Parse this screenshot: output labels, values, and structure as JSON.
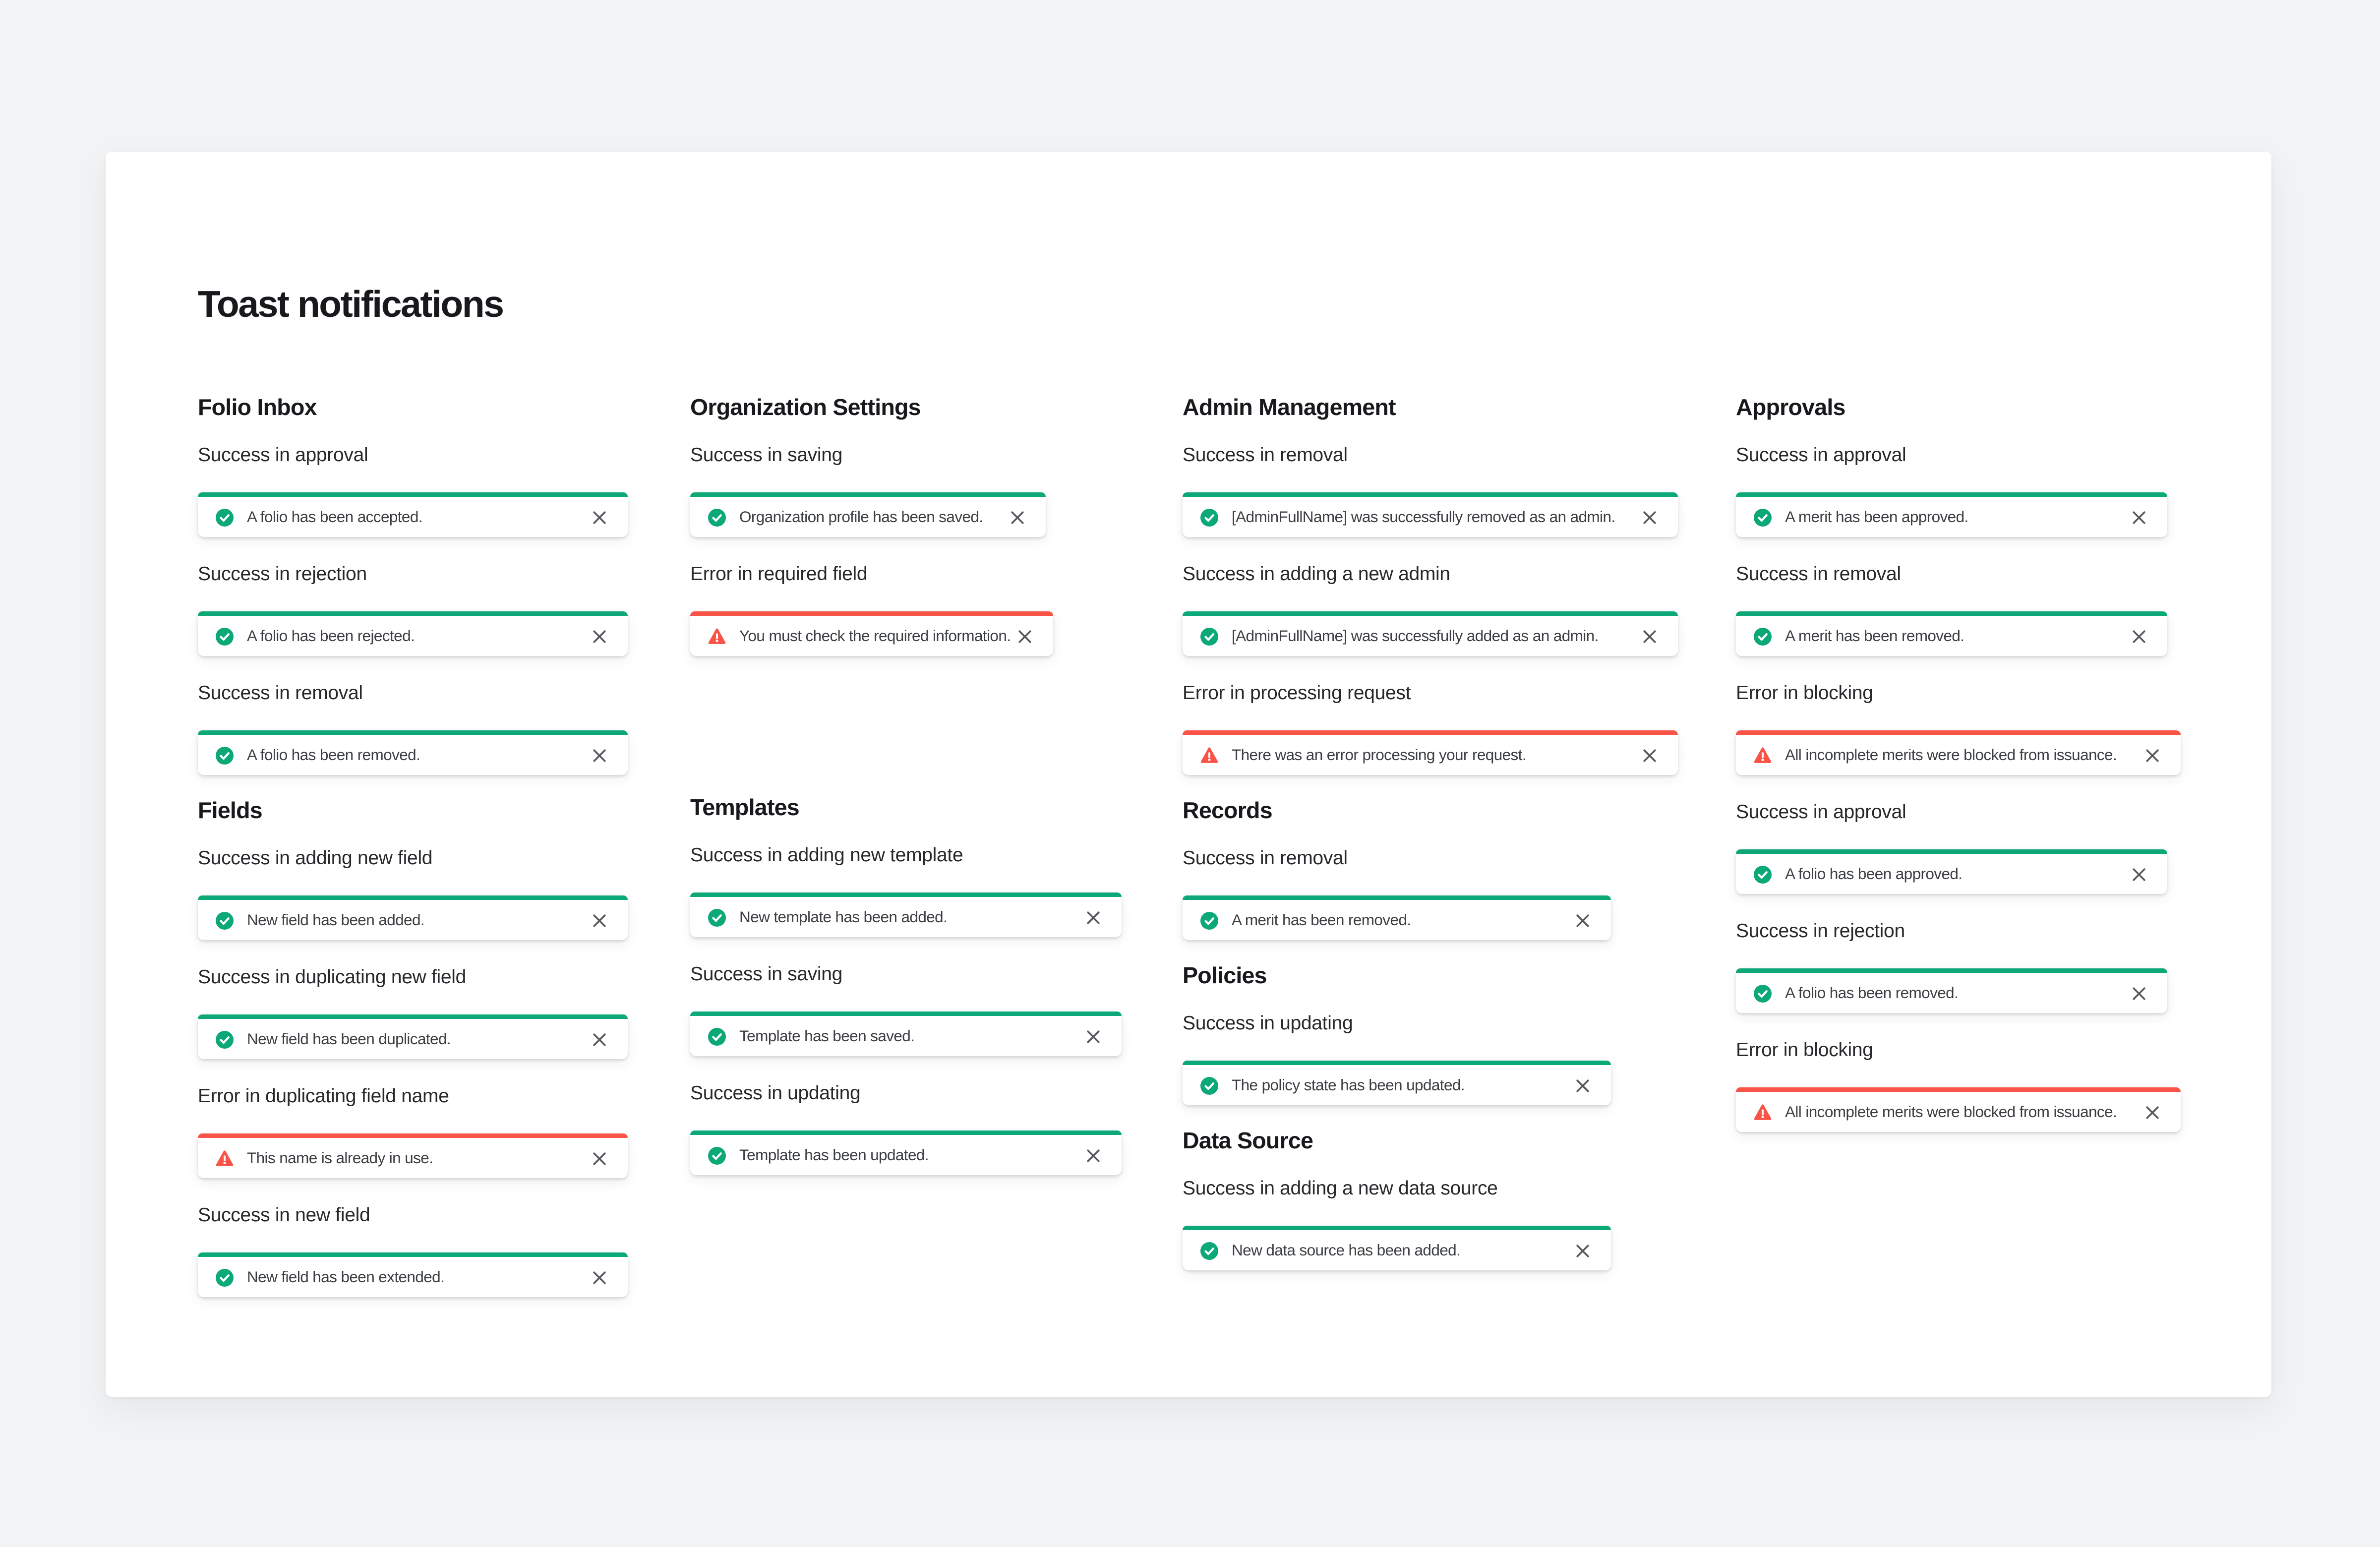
{
  "title": "Toast notifications",
  "colors": {
    "success": "#0ca878",
    "error": "#fa5347",
    "close": "#55585c"
  },
  "columns": [
    {
      "sections": [
        {
          "title": "Folio Inbox",
          "groups": [
            {
              "label": "Success in approval",
              "toast": {
                "type": "success",
                "message": "A folio has been accepted."
              }
            },
            {
              "label": "Success in rejection",
              "toast": {
                "type": "success",
                "message": "A folio has been rejected."
              }
            },
            {
              "label": "Success in removal",
              "toast": {
                "type": "success",
                "message": "A folio has been removed."
              }
            }
          ]
        },
        {
          "title": "Fields",
          "groups": [
            {
              "label": "Success in adding new field",
              "toast": {
                "type": "success",
                "message": "New field has been added."
              }
            },
            {
              "label": "Success in duplicating new field",
              "toast": {
                "type": "success",
                "message": "New field has been duplicated."
              }
            },
            {
              "label": "Error in duplicating field name",
              "toast": {
                "type": "error",
                "message": "This name is already in use."
              }
            },
            {
              "label": "Success in new field",
              "toast": {
                "type": "success",
                "message": "New field has been extended."
              }
            }
          ]
        }
      ]
    },
    {
      "sections": [
        {
          "title": "Organization Settings",
          "groups": [
            {
              "label": "Success in saving",
              "toast": {
                "type": "success",
                "message": "Organization profile has been saved."
              }
            },
            {
              "label": "Error in required field",
              "toast": {
                "type": "error",
                "message": "You must check the required information."
              }
            }
          ]
        },
        {
          "title": "Templates",
          "groups": [
            {
              "label": "Success in adding new template",
              "toast": {
                "type": "success",
                "message": "New template has been added."
              }
            },
            {
              "label": "Success in saving",
              "toast": {
                "type": "success",
                "message": "Template has been saved."
              }
            },
            {
              "label": "Success in updating",
              "toast": {
                "type": "success",
                "message": "Template has been updated."
              }
            }
          ]
        }
      ]
    },
    {
      "sections": [
        {
          "title": "Admin Management",
          "groups": [
            {
              "label": "Success in removal",
              "toast": {
                "type": "success",
                "message": "[AdminFullName] was successfully removed as an admin."
              }
            },
            {
              "label": "Success in adding a new admin",
              "toast": {
                "type": "success",
                "message": "[AdminFullName] was successfully added as an admin."
              }
            },
            {
              "label": "Error in processing request",
              "toast": {
                "type": "error",
                "message": "There was an error processing your request."
              }
            }
          ]
        },
        {
          "title": "Records",
          "groups": [
            {
              "label": "Success in removal",
              "toast": {
                "type": "success",
                "message": "A merit has been removed."
              }
            }
          ]
        },
        {
          "title": "Policies",
          "groups": [
            {
              "label": "Success in updating",
              "toast": {
                "type": "success",
                "message": "The policy state has been updated."
              }
            }
          ]
        },
        {
          "title": "Data Source",
          "groups": [
            {
              "label": "Success in adding a new data source",
              "toast": {
                "type": "success",
                "message": "New data source has been added."
              }
            }
          ]
        }
      ]
    },
    {
      "sections": [
        {
          "title": "Approvals",
          "groups": [
            {
              "label": "Success in approval",
              "toast": {
                "type": "success",
                "message": "A merit has been approved."
              }
            },
            {
              "label": "Success in removal",
              "toast": {
                "type": "success",
                "message": "A merit has been removed."
              }
            },
            {
              "label": "Error in blocking",
              "toast": {
                "type": "error",
                "message": "All incomplete merits were blocked from issuance."
              }
            },
            {
              "label": "Success in approval",
              "toast": {
                "type": "success",
                "message": "A folio has been approved."
              }
            },
            {
              "label": "Success in rejection",
              "toast": {
                "type": "success",
                "message": "A folio has been removed."
              }
            },
            {
              "label": "Error in blocking",
              "toast": {
                "type": "error",
                "message": "All incomplete merits were blocked from issuance."
              }
            }
          ]
        }
      ]
    }
  ]
}
